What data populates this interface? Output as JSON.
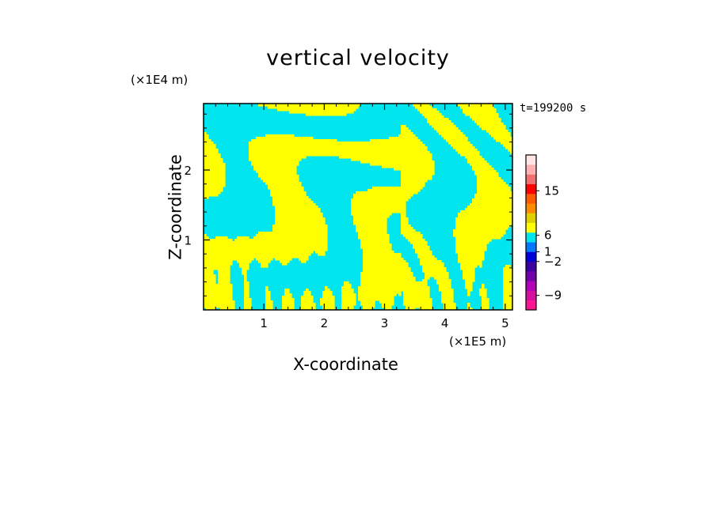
{
  "chart_data": {
    "type": "heatmap",
    "title": "vertical velocity",
    "xlabel": "X-coordinate",
    "ylabel": "Z-coordinate",
    "x_scale_label": "(×1E5 m)",
    "z_scale_label": "(×1E4 m)",
    "time_label": "t=199200 s",
    "xlim": [
      0,
      5.12
    ],
    "ylim": [
      0,
      2.95
    ],
    "x_ticks": [
      "1",
      "2",
      "3",
      "4",
      "5"
    ],
    "y_ticks": [
      "1",
      "2"
    ],
    "colorbar": {
      "labels": [
        "15",
        "6",
        "1",
        "−2",
        "−9"
      ],
      "label_values": [
        15,
        6,
        1,
        -2,
        -9
      ],
      "colors": [
        "#ff1493",
        "#d60fa0",
        "#b000b8",
        "#7000a8",
        "#3c00a0",
        "#0000d8",
        "#0078ff",
        "#00e5ee",
        "#ffff00",
        "#e0d000",
        "#ff8c00",
        "#ff5a00",
        "#ff0000",
        "#f07070",
        "#ffb0b0",
        "#ffe4e4"
      ]
    },
    "field_colors": {
      "positive": "#ffff00",
      "negative": "#00e5ee"
    }
  }
}
